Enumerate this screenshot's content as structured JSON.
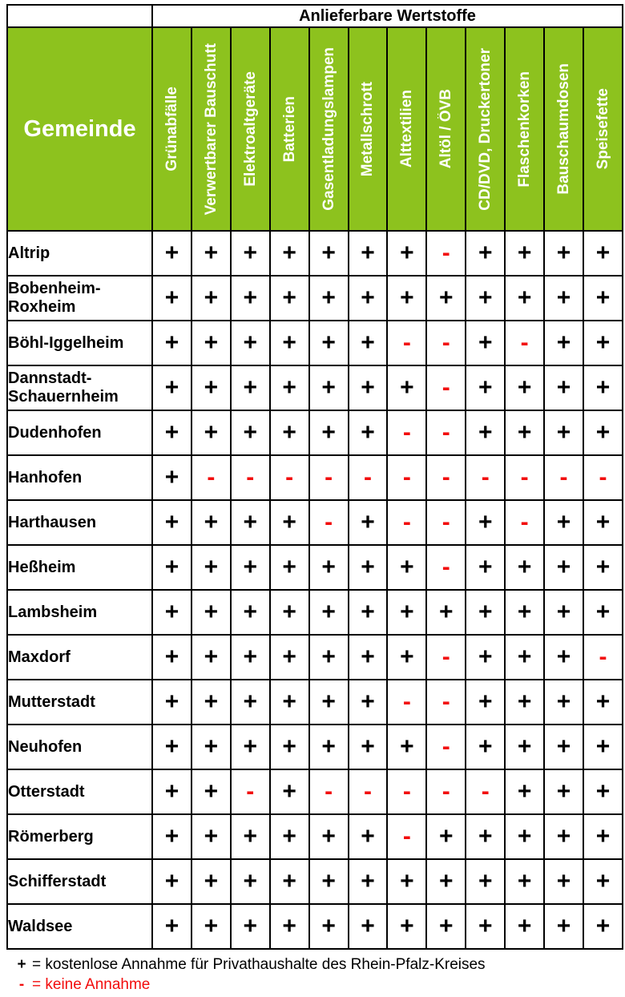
{
  "colors": {
    "header_green": "#8dc21e",
    "minus_red": "#f20d0d",
    "plus_black": "#000000"
  },
  "table": {
    "top_header": "Anlieferbare Wertstoffe",
    "corner_label": "Gemeinde",
    "columns": [
      "Grünabfälle",
      "Verwertbarer Bauschutt",
      "Elektroaltgeräte",
      "Batterien",
      "Gasentladungslampen",
      "Metallschrott",
      "Alttextilien",
      "Altöl / ÖVB",
      "CD/DVD, Druckertoner",
      "Flaschenkorken",
      "Bauschaumdosen",
      "Speisefette"
    ],
    "rows": [
      {
        "name": "Altrip",
        "values": [
          "+",
          "+",
          "+",
          "+",
          "+",
          "+",
          "+",
          "-",
          "+",
          "+",
          "+",
          "+"
        ]
      },
      {
        "name": "Bobenheim-\nRoxheim",
        "values": [
          "+",
          "+",
          "+",
          "+",
          "+",
          "+",
          "+",
          "+",
          "+",
          "+",
          "+",
          "+"
        ]
      },
      {
        "name": "Böhl-Iggelheim",
        "values": [
          "+",
          "+",
          "+",
          "+",
          "+",
          "+",
          "-",
          "-",
          "+",
          "-",
          "+",
          "+"
        ]
      },
      {
        "name": "Dannstadt-\nSchauernheim",
        "values": [
          "+",
          "+",
          "+",
          "+",
          "+",
          "+",
          "+",
          "-",
          "+",
          "+",
          "+",
          "+"
        ]
      },
      {
        "name": "Dudenhofen",
        "values": [
          "+",
          "+",
          "+",
          "+",
          "+",
          "+",
          "-",
          "-",
          "+",
          "+",
          "+",
          "+"
        ]
      },
      {
        "name": "Hanhofen",
        "values": [
          "+",
          "-",
          "-",
          "-",
          "-",
          "-",
          "-",
          "-",
          "-",
          "-",
          "-",
          "-"
        ]
      },
      {
        "name": "Harthausen",
        "values": [
          "+",
          "+",
          "+",
          "+",
          "-",
          "+",
          "-",
          "-",
          "+",
          "-",
          "+",
          "+"
        ]
      },
      {
        "name": "Heßheim",
        "values": [
          "+",
          "+",
          "+",
          "+",
          "+",
          "+",
          "+",
          "-",
          "+",
          "+",
          "+",
          "+"
        ]
      },
      {
        "name": "Lambsheim",
        "values": [
          "+",
          "+",
          "+",
          "+",
          "+",
          "+",
          "+",
          "+",
          "+",
          "+",
          "+",
          "+"
        ]
      },
      {
        "name": "Maxdorf",
        "values": [
          "+",
          "+",
          "+",
          "+",
          "+",
          "+",
          "+",
          "-",
          "+",
          "+",
          "+",
          "-"
        ]
      },
      {
        "name": "Mutterstadt",
        "values": [
          "+",
          "+",
          "+",
          "+",
          "+",
          "+",
          "-",
          "-",
          "+",
          "+",
          "+",
          "+"
        ]
      },
      {
        "name": "Neuhofen",
        "values": [
          "+",
          "+",
          "+",
          "+",
          "+",
          "+",
          "+",
          "-",
          "+",
          "+",
          "+",
          "+"
        ]
      },
      {
        "name": "Otterstadt",
        "values": [
          "+",
          "+",
          "-",
          "+",
          "-",
          "-",
          "-",
          "-",
          "-",
          "+",
          "+",
          "+"
        ]
      },
      {
        "name": "Römerberg",
        "values": [
          "+",
          "+",
          "+",
          "+",
          "+",
          "+",
          "-",
          "+",
          "+",
          "+",
          "+",
          "+"
        ]
      },
      {
        "name": "Schifferstadt",
        "values": [
          "+",
          "+",
          "+",
          "+",
          "+",
          "+",
          "+",
          "+",
          "+",
          "+",
          "+",
          "+"
        ]
      },
      {
        "name": "Waldsee",
        "values": [
          "+",
          "+",
          "+",
          "+",
          "+",
          "+",
          "+",
          "+",
          "+",
          "+",
          "+",
          "+"
        ]
      }
    ]
  },
  "legend": {
    "plus_symbol": "+",
    "plus_text": "= kostenlose Annahme für Privathaushalte des Rhein-Pfalz-Kreises",
    "minus_symbol": "-",
    "minus_text": "= keine Annahme"
  }
}
